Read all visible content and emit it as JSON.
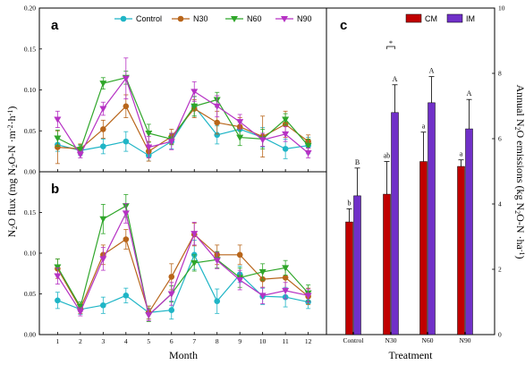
{
  "figure": {
    "x_axis_left_title": "Month",
    "x_axis_right_title": "Treatment",
    "y_axis_left_title_parts": [
      "N",
      "2",
      "O flux (mg N",
      "2",
      "O-N ·m",
      "-2",
      "·h",
      "-1",
      ")"
    ],
    "y_axis_right_title_parts": [
      "Annual N",
      "2",
      "O emissions (kg N",
      "2",
      "O-N ·ha",
      "-1",
      ")"
    ]
  },
  "chart_data": [
    {
      "panel": "a",
      "type": "line",
      "x": [
        1,
        2,
        3,
        4,
        5,
        6,
        7,
        8,
        9,
        10,
        11,
        12
      ],
      "xlim": [
        0.2,
        12.8
      ],
      "ylim": [
        0,
        0.2
      ],
      "yticks": [
        "0.00",
        "0.05",
        "0.10",
        "0.15",
        "0.20"
      ],
      "xticks": [
        "1",
        "2",
        "3",
        "4",
        "5",
        "6",
        "7",
        "8",
        "9",
        "10",
        "11",
        "12"
      ],
      "legend": {
        "position": "top",
        "entries": [
          "Control",
          "N30",
          "N60",
          "N90"
        ]
      },
      "series": [
        {
          "name": "Control",
          "color": "#1fb5c6",
          "marker": "circle",
          "values": [
            0.033,
            0.026,
            0.031,
            0.037,
            0.02,
            0.037,
            0.08,
            0.045,
            0.052,
            0.042,
            0.028,
            0.032
          ],
          "errors": [
            0.008,
            0.006,
            0.009,
            0.012,
            0.007,
            0.009,
            0.012,
            0.011,
            0.009,
            0.012,
            0.012,
            0.01
          ]
        },
        {
          "name": "N30",
          "color": "#b8651a",
          "marker": "circle",
          "values": [
            0.03,
            0.028,
            0.052,
            0.08,
            0.025,
            0.043,
            0.077,
            0.06,
            0.055,
            0.043,
            0.058,
            0.037
          ],
          "errors": [
            0.02,
            0.006,
            0.011,
            0.014,
            0.012,
            0.009,
            0.011,
            0.014,
            0.011,
            0.025,
            0.016,
            0.008
          ]
        },
        {
          "name": "N60",
          "color": "#2fa62a",
          "marker": "triangle-down",
          "values": [
            0.041,
            0.027,
            0.108,
            0.115,
            0.047,
            0.04,
            0.08,
            0.088,
            0.042,
            0.04,
            0.064,
            0.032
          ],
          "errors": [
            0.01,
            0.006,
            0.007,
            0.008,
            0.011,
            0.007,
            0.012,
            0.009,
            0.01,
            0.012,
            0.007,
            0.008
          ]
        },
        {
          "name": "N90",
          "color": "#b632c4",
          "marker": "triangle-down",
          "values": [
            0.064,
            0.021,
            0.077,
            0.114,
            0.03,
            0.037,
            0.098,
            0.08,
            0.061,
            0.039,
            0.046,
            0.023
          ],
          "errors": [
            0.01,
            0.004,
            0.008,
            0.025,
            0.013,
            0.01,
            0.012,
            0.013,
            0.009,
            0.008,
            0.009,
            0.006
          ]
        }
      ]
    },
    {
      "panel": "b",
      "type": "line",
      "x": [
        1,
        2,
        3,
        4,
        5,
        6,
        7,
        8,
        9,
        10,
        11,
        12
      ],
      "xlim": [
        0.2,
        12.8
      ],
      "ylim": [
        0,
        0.2
      ],
      "yticks": [
        "0.00",
        "0.05",
        "0.10",
        "0.15"
      ],
      "xticks": [
        "1",
        "2",
        "3",
        "4",
        "5",
        "6",
        "7",
        "8",
        "9",
        "10",
        "11",
        "12"
      ],
      "series": [
        {
          "name": "Control",
          "color": "#1fb5c6",
          "marker": "circle",
          "values": [
            0.042,
            0.031,
            0.036,
            0.048,
            0.027,
            0.03,
            0.098,
            0.041,
            0.074,
            0.047,
            0.046,
            0.04
          ],
          "errors": [
            0.01,
            0.006,
            0.01,
            0.009,
            0.008,
            0.011,
            0.018,
            0.015,
            0.01,
            0.01,
            0.012,
            0.008
          ]
        },
        {
          "name": "N30",
          "color": "#b8651a",
          "marker": "circle",
          "values": [
            0.081,
            0.032,
            0.098,
            0.117,
            0.027,
            0.071,
            0.123,
            0.098,
            0.098,
            0.068,
            0.07,
            0.047
          ],
          "errors": [
            0.012,
            0.006,
            0.012,
            0.012,
            0.008,
            0.016,
            0.014,
            0.012,
            0.012,
            0.01,
            0.014,
            0.01
          ]
        },
        {
          "name": "N60",
          "color": "#2fa62a",
          "marker": "triangle-down",
          "values": [
            0.083,
            0.034,
            0.142,
            0.158,
            0.024,
            0.05,
            0.088,
            0.092,
            0.07,
            0.077,
            0.082,
            0.051
          ],
          "errors": [
            0.01,
            0.006,
            0.018,
            0.014,
            0.008,
            0.01,
            0.01,
            0.01,
            0.012,
            0.01,
            0.009,
            0.01
          ]
        },
        {
          "name": "N90",
          "color": "#b632c4",
          "marker": "triangle-down",
          "values": [
            0.072,
            0.028,
            0.093,
            0.149,
            0.024,
            0.05,
            0.124,
            0.091,
            0.067,
            0.048,
            0.054,
            0.048
          ],
          "errors": [
            0.01,
            0.005,
            0.014,
            0.012,
            0.007,
            0.014,
            0.014,
            0.01,
            0.012,
            0.01,
            0.01,
            0.008
          ]
        }
      ]
    },
    {
      "panel": "c",
      "type": "bar",
      "categories": [
        "Control",
        "N30",
        "N60",
        "N90"
      ],
      "ylim": [
        0,
        10
      ],
      "yticks": [
        "0",
        "2",
        "4",
        "6",
        "8",
        "10"
      ],
      "legend": {
        "position": "top",
        "entries": [
          "CM",
          "IM"
        ]
      },
      "series": [
        {
          "name": "CM",
          "color": "#c00000",
          "values": [
            3.45,
            4.3,
            5.3,
            5.15
          ],
          "errors": [
            0.4,
            1.0,
            0.9,
            0.2
          ],
          "letters": [
            "b",
            "ab",
            "a",
            "a"
          ]
        },
        {
          "name": "IM",
          "color": "#7030c8",
          "values": [
            4.25,
            6.8,
            7.1,
            6.3
          ],
          "errors": [
            0.85,
            0.85,
            0.8,
            0.9
          ],
          "letters": [
            "B",
            "A",
            "A",
            "A"
          ]
        }
      ],
      "annotation": "*"
    }
  ]
}
